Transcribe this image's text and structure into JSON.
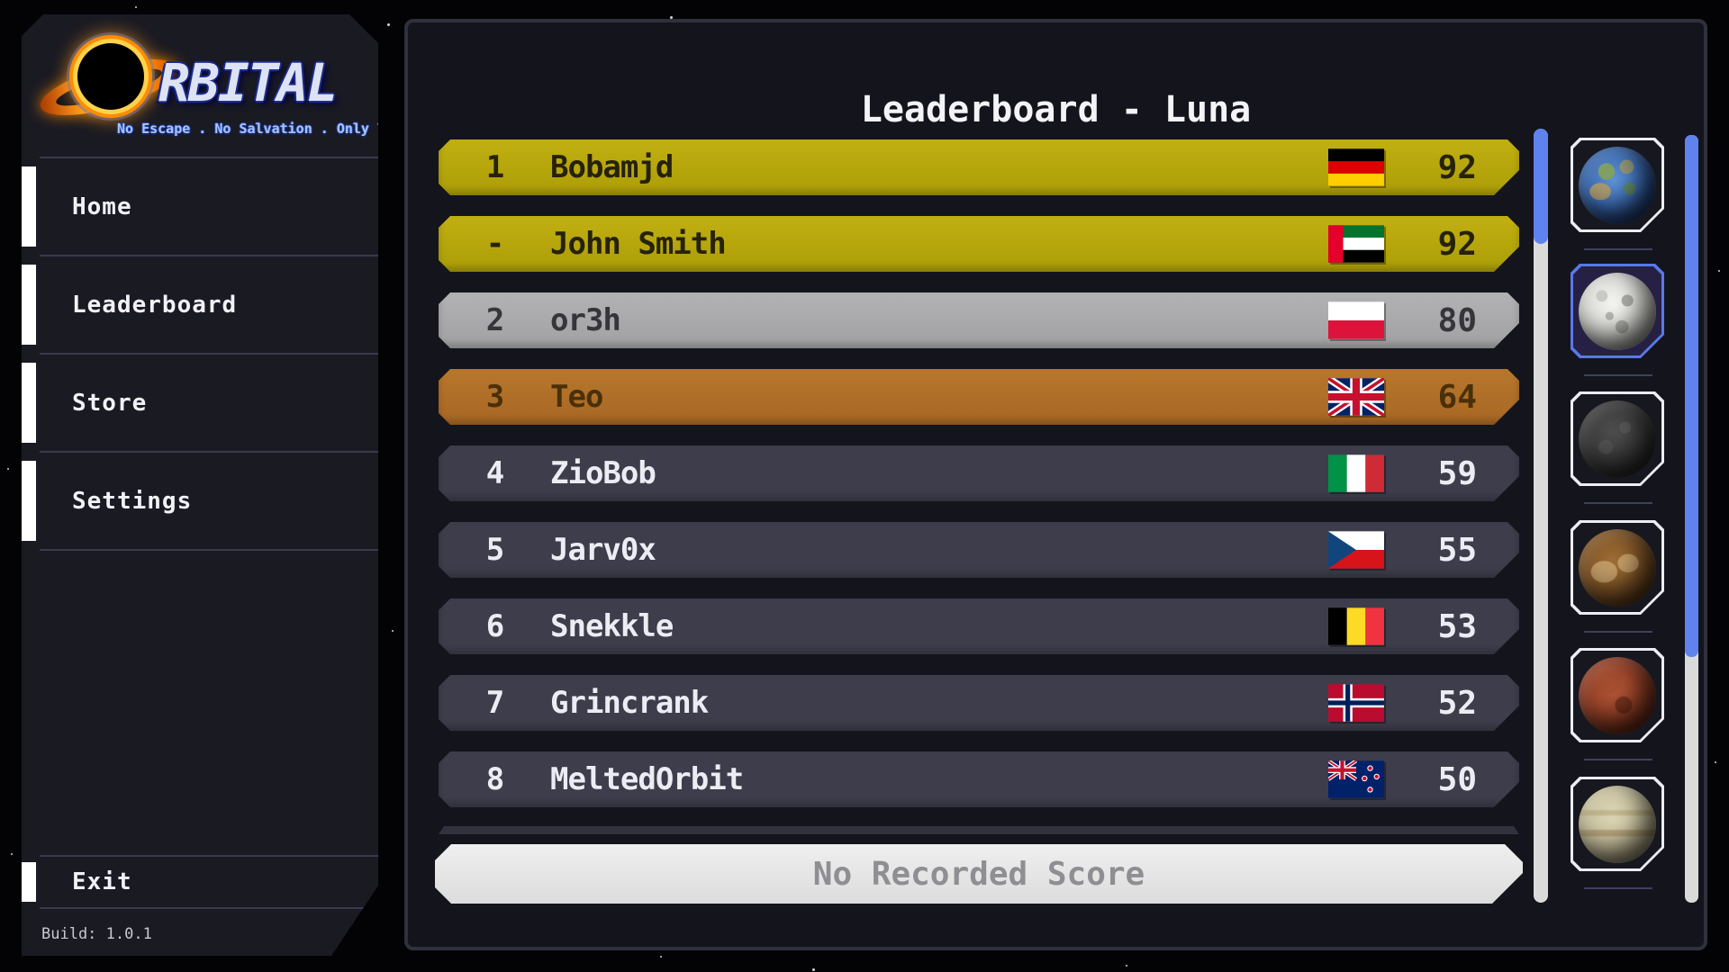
{
  "app": {
    "logo_text": "RBITAL",
    "tagline": "No Escape . No Salvation . Only Time",
    "build": "Build: 1.0.1"
  },
  "sidebar": {
    "items": [
      {
        "label": "Home"
      },
      {
        "label": "Leaderboard"
      },
      {
        "label": "Store"
      },
      {
        "label": "Settings"
      }
    ],
    "exit_label": "Exit"
  },
  "main": {
    "title": "Leaderboard - Luna",
    "empty_button_label": "No Recorded Score"
  },
  "leaderboard": {
    "rows": [
      {
        "rank": "1",
        "name": "Bobamjd",
        "country": "Germany",
        "flag": "de",
        "score": "92",
        "tier": "gold"
      },
      {
        "rank": "-",
        "name": "John Smith",
        "country": "United Arab Emirates",
        "flag": "ae",
        "score": "92",
        "tier": "gold"
      },
      {
        "rank": "2",
        "name": "or3h",
        "country": "Poland",
        "flag": "pl",
        "score": "80",
        "tier": "silver"
      },
      {
        "rank": "3",
        "name": "Teo",
        "country": "United Kingdom",
        "flag": "gb",
        "score": "64",
        "tier": "bronze"
      },
      {
        "rank": "4",
        "name": "ZioBob",
        "country": "Italy",
        "flag": "it",
        "score": "59",
        "tier": "normal"
      },
      {
        "rank": "5",
        "name": "Jarv0x",
        "country": "Czech Republic",
        "flag": "cz",
        "score": "55",
        "tier": "normal"
      },
      {
        "rank": "6",
        "name": "Snekkle",
        "country": "Belgium",
        "flag": "be",
        "score": "53",
        "tier": "normal"
      },
      {
        "rank": "7",
        "name": "Grincrank",
        "country": "Norway",
        "flag": "no",
        "score": "52",
        "tier": "normal"
      },
      {
        "rank": "8",
        "name": "MeltedOrbit",
        "country": "New Zealand",
        "flag": "nz",
        "score": "50",
        "tier": "normal"
      }
    ]
  },
  "planets": {
    "items": [
      {
        "id": "earth",
        "selected": false
      },
      {
        "id": "luna",
        "selected": true
      },
      {
        "id": "mercury",
        "selected": false
      },
      {
        "id": "venus",
        "selected": false
      },
      {
        "id": "mars",
        "selected": false
      },
      {
        "id": "saturn",
        "selected": false
      }
    ]
  },
  "colors": {
    "accent_blue": "#5f82ee",
    "gold_row": "#b7a70e",
    "silver_row": "#a9a9ab",
    "bronze_row": "#b0712a",
    "normal_row": "#3d3d4b",
    "panel_bg": "#14141c",
    "sidebar_bg": "#1a1a23"
  }
}
